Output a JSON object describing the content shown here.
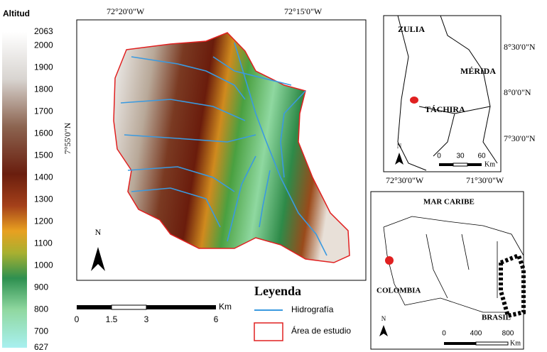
{
  "altitude_legend": {
    "title": "Altitud",
    "ticks": [
      2063,
      2000,
      1900,
      1800,
      1700,
      1600,
      1500,
      1400,
      1300,
      1200,
      1100,
      1000,
      900,
      800,
      700,
      627
    ]
  },
  "main_map": {
    "lon_labels": [
      "72°20'0\"W",
      "72°15'0\"W"
    ],
    "lat_label": "7°55'0\"N",
    "north": "N",
    "scale": {
      "labels": [
        "0",
        "1.5",
        "3",
        "6"
      ],
      "unit": "Km"
    }
  },
  "legend": {
    "title": "Leyenda",
    "items": [
      "Hidrografía",
      "Área de estudio"
    ]
  },
  "inset_states": {
    "labels": [
      "ZULIA",
      "MÉRIDA",
      "TÁCHIRA"
    ],
    "lat_labels": [
      "8°30'0\"N",
      "8°0'0\"N",
      "7°30'0\"N"
    ],
    "lon_labels": [
      "72°30'0\"W",
      "71°30'0\"W"
    ],
    "north": "N",
    "scale": {
      "labels": [
        "0",
        "30",
        "60"
      ],
      "unit": "Km"
    }
  },
  "inset_country": {
    "labels": [
      "MAR CARIBE",
      "COLOMBIA",
      "BRASIL"
    ],
    "north": "N",
    "scale": {
      "labels": [
        "0",
        "400",
        "800"
      ],
      "unit": "Km"
    }
  }
}
